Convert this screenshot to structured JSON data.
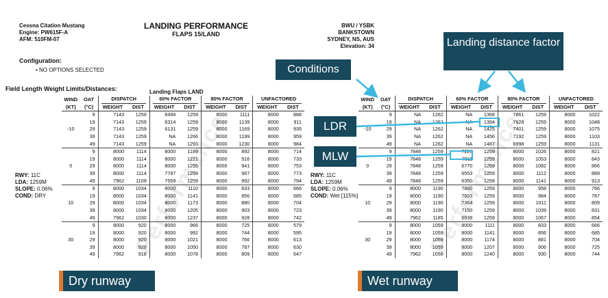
{
  "aircraft": {
    "model": "Cessna Citation Mustang",
    "engine": "Engine: PW615F-A",
    "afm": "AFM: 510FM-07"
  },
  "title": "LANDING PERFORMANCE",
  "subtitle": "FLAPS 15/LAND",
  "station": {
    "code": "BWU / YSBK",
    "name": "BANKSTOWN",
    "location": "SYDNEY, NS, AUS",
    "elevation": "Elevation:  34"
  },
  "configuration": {
    "heading": "Configuration:",
    "option": "NO OPTIONS SELECTED"
  },
  "field_length_heading": "Field Length Weight Limits/Distances:",
  "landing_flaps_label": "Landing Flaps LAND",
  "table_headers": {
    "wind": "WIND",
    "oat": "OAT",
    "dispatch": "DISPATCH",
    "f60": "60% FACTOR",
    "f80": "80% FACTOR",
    "unfactored": "UNFACTORED",
    "kt": "(KT)",
    "c": "(°C)",
    "weight": "WEIGHT",
    "dist": "DIST"
  },
  "dry": {
    "runway_conditions": [
      {
        "label": "RWY:",
        "value": "11C"
      },
      {
        "label": "LDA:",
        "value": "1259M"
      },
      {
        "label": "SLOPE:",
        "value": "0.06%"
      },
      {
        "label": "COND:",
        "value": "DRY"
      }
    ],
    "groups": [
      {
        "wind": "-10",
        "rows": [
          [
            "9",
            "7143",
            "1259",
            "6494",
            "1259",
            "8000",
            "1111",
            "8000",
            "888"
          ],
          [
            "19",
            "7143",
            "1259",
            "6314",
            "1259",
            "8000",
            "1139",
            "8000",
            "911"
          ],
          [
            "29",
            "7143",
            "1259",
            "6131",
            "1259",
            "8000",
            "1169",
            "8000",
            "935"
          ],
          [
            "39",
            "7143",
            "1259",
            "NA",
            "1266",
            "8000",
            "1199",
            "8000",
            "959"
          ],
          [
            "49",
            "7143",
            "1259",
            "NA",
            "1293",
            "8000",
            "1230",
            "8000",
            "984"
          ]
        ]
      },
      {
        "wind": "0",
        "rows": [
          [
            "9",
            "8000",
            "1114",
            "8000",
            "1189",
            "8000",
            "892",
            "8000",
            "714"
          ],
          [
            "19",
            "8000",
            "1114",
            "8000",
            "1221",
            "8000",
            "916",
            "8000",
            "733"
          ],
          [
            "29",
            "8000",
            "1114",
            "8000",
            "1255",
            "8000",
            "941",
            "8000",
            "753"
          ],
          [
            "39",
            "8000",
            "1114",
            "7787",
            "1259",
            "8000",
            "967",
            "8000",
            "773"
          ],
          [
            "49",
            "7962",
            "1109",
            "7559",
            "1259",
            "8000",
            "992",
            "8000",
            "794"
          ]
        ]
      },
      {
        "wind": "10",
        "rows": [
          [
            "9",
            "8000",
            "1034",
            "8000",
            "1110",
            "8000",
            "833",
            "8000",
            "666"
          ],
          [
            "19",
            "8000",
            "1034",
            "8000",
            "1141",
            "8000",
            "856",
            "8000",
            "685"
          ],
          [
            "29",
            "8000",
            "1034",
            "8000",
            "1173",
            "8000",
            "880",
            "8000",
            "704"
          ],
          [
            "39",
            "8000",
            "1034",
            "8000",
            "1205",
            "8000",
            "903",
            "8000",
            "723"
          ],
          [
            "49",
            "7962",
            "1030",
            "8000",
            "1237",
            "8000",
            "928",
            "8000",
            "742"
          ]
        ]
      },
      {
        "wind": "30",
        "rows": [
          [
            "9",
            "8000",
            "920",
            "8000",
            "966",
            "8000",
            "725",
            "8000",
            "579"
          ],
          [
            "19",
            "8000",
            "920",
            "8000",
            "992",
            "8000",
            "744",
            "8000",
            "595"
          ],
          [
            "29",
            "8000",
            "920",
            "8000",
            "1021",
            "8000",
            "766",
            "8000",
            "613"
          ],
          [
            "39",
            "8000",
            "920",
            "8000",
            "1050",
            "8000",
            "787",
            "8000",
            "630"
          ],
          [
            "49",
            "7962",
            "918",
            "8000",
            "1078",
            "8000",
            "809",
            "8000",
            "647"
          ]
        ]
      }
    ]
  },
  "wet": {
    "runway_conditions": [
      {
        "label": "RWY:",
        "value": "11C"
      },
      {
        "label": "LDA:",
        "value": "1259M"
      },
      {
        "label": "SLOPE:",
        "value": "0.06%"
      },
      {
        "label": "COND:",
        "value": "Wet [115%]"
      }
    ],
    "groups": [
      {
        "wind": "-10",
        "rows": [
          [
            "9",
            "NA",
            "1262",
            "NA",
            "1368",
            "7861",
            "1259",
            "8000",
            "1022"
          ],
          [
            "19",
            "NA",
            "1262",
            "NA",
            "1394",
            "7628",
            "1259",
            "8000",
            "1048"
          ],
          [
            "29",
            "NA",
            "1262",
            "NA",
            "1425",
            "7401",
            "1259",
            "8000",
            "1075"
          ],
          [
            "39",
            "NA",
            "1262",
            "NA",
            "1456",
            "7192",
            "1259",
            "8000",
            "1103"
          ],
          [
            "49",
            "NA",
            "1262",
            "NA",
            "1487",
            "6998",
            "1259",
            "8000",
            "1131"
          ]
        ]
      },
      {
        "wind": "0",
        "rows": [
          [
            "9",
            "7848",
            "1259",
            "7226",
            "1259",
            "8000",
            "1026",
            "8000",
            "821"
          ],
          [
            "19",
            "7848",
            "1259",
            "7011",
            "1259",
            "8000",
            "1053",
            "8000",
            "843"
          ],
          [
            "29",
            "7848",
            "1259",
            "6770",
            "1259",
            "8000",
            "1082",
            "8000",
            "866"
          ],
          [
            "39",
            "7848",
            "1259",
            "6553",
            "1259",
            "8000",
            "1112",
            "8000",
            "889"
          ],
          [
            "49",
            "7848",
            "1259",
            "6350",
            "1259",
            "8000",
            "1141",
            "8000",
            "913"
          ]
        ]
      },
      {
        "wind": "10",
        "rows": [
          [
            "9",
            "8000",
            "1190",
            "7860",
            "1259",
            "8000",
            "958",
            "8000",
            "766"
          ],
          [
            "19",
            "8000",
            "1190",
            "7603",
            "1259",
            "8000",
            "984",
            "8000",
            "787"
          ],
          [
            "29",
            "8000",
            "1190",
            "7364",
            "1259",
            "8000",
            "1011",
            "8000",
            "809"
          ],
          [
            "39",
            "8000",
            "1190",
            "7150",
            "1259",
            "8000",
            "1039",
            "8000",
            "831"
          ],
          [
            "49",
            "7962",
            "1185",
            "6938",
            "1259",
            "8000",
            "1067",
            "8000",
            "854"
          ]
        ]
      },
      {
        "wind": "30",
        "rows": [
          [
            "9",
            "8000",
            "1059",
            "8000",
            "1111",
            "8000",
            "833",
            "8000",
            "666"
          ],
          [
            "19",
            "8000",
            "1059",
            "8000",
            "1141",
            "8000",
            "856",
            "8000",
            "685"
          ],
          [
            "29",
            "8000",
            "1059",
            "8000",
            "1174",
            "8000",
            "881",
            "8000",
            "704"
          ],
          [
            "39",
            "8000",
            "1059",
            "8000",
            "1207",
            "8000",
            "906",
            "8000",
            "725"
          ],
          [
            "49",
            "7962",
            "1056",
            "8000",
            "1240",
            "8000",
            "930",
            "8000",
            "744"
          ]
        ]
      }
    ]
  },
  "annotations": {
    "conditions": "Conditions",
    "landing_distance_factor": "Landing distance factor",
    "ldr": "LDR",
    "mlw": "MLW",
    "dry_runway": "Dry runway",
    "wet_runway": "Wet runway"
  },
  "colors": {
    "callout_bg": "#17485c",
    "accent_orange": "#e07a2e",
    "highlight_cyan": "#3bb7de"
  }
}
